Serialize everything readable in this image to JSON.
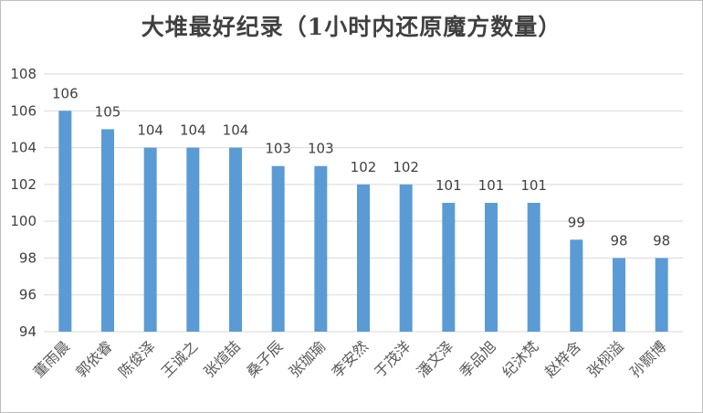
{
  "chart_data": {
    "type": "bar",
    "title": "大堆最好纪录（1小时内还原魔方数量）",
    "xlabel": "",
    "ylabel": "",
    "categories": [
      "董雨晨",
      "郭依睿",
      "陈俊泽",
      "王诚之",
      "张煊喆",
      "桑子辰",
      "张珈瑜",
      "李安然",
      "于茂洋",
      "潘文泽",
      "季品旭",
      "纪沐梵",
      "赵梓含",
      "张栩溢",
      "孙颢博"
    ],
    "values": [
      106,
      105,
      104,
      104,
      104,
      103,
      103,
      102,
      102,
      101,
      101,
      101,
      99,
      98,
      98
    ],
    "ylim": [
      94,
      108
    ],
    "yticks": [
      94,
      96,
      98,
      100,
      102,
      104,
      106,
      108
    ],
    "grid": true,
    "bar_color": "#5b9bd5",
    "grid_color": "#d9d9d9"
  }
}
